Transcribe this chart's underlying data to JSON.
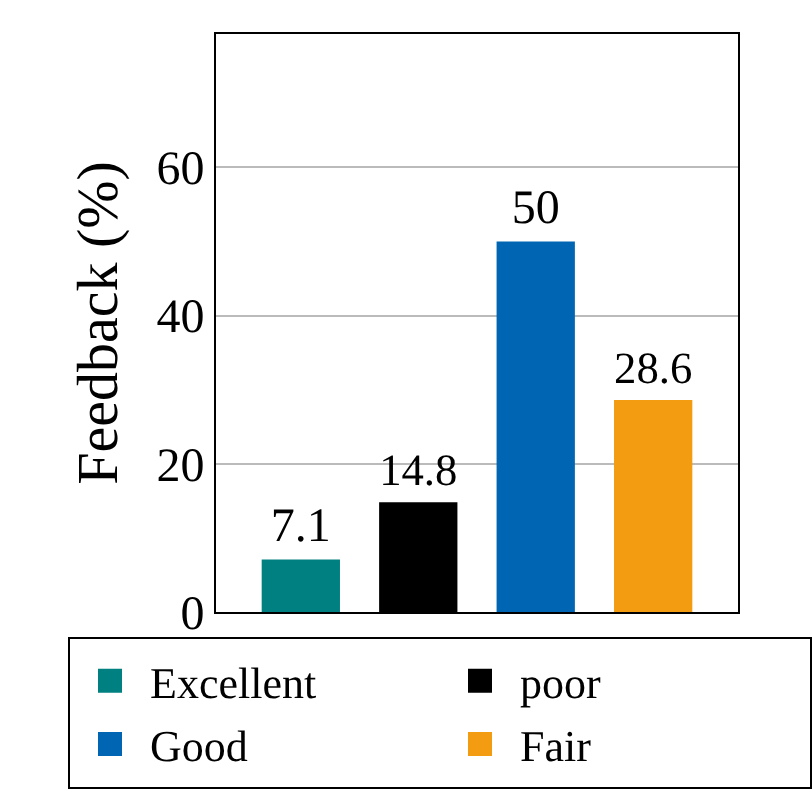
{
  "chart_data": {
    "type": "bar",
    "ylabel": "Feedback (%)",
    "categories": [
      null
    ],
    "series": [
      {
        "name": "Excellent",
        "color": "#008080",
        "values": [
          7.1
        ]
      },
      {
        "name": "poor",
        "color": "#000000",
        "values": [
          14.8
        ]
      },
      {
        "name": "Good",
        "color": "#0066b3",
        "values": [
          50
        ]
      },
      {
        "name": "Fair",
        "color": "#f39c12",
        "values": [
          28.6
        ]
      }
    ],
    "ylim": [
      0,
      78
    ],
    "yticks": [
      0,
      20,
      40,
      60
    ],
    "grid": "y",
    "data_labels": true,
    "legend": "bottom"
  }
}
